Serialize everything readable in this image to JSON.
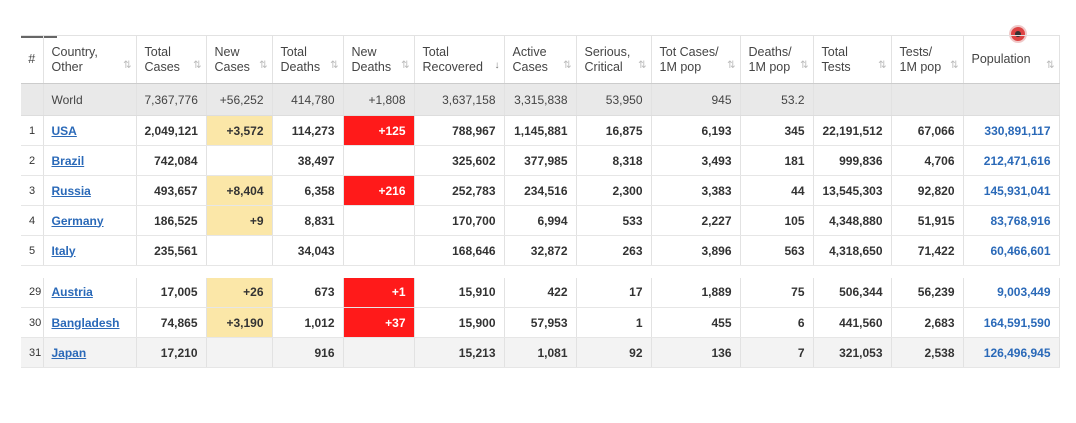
{
  "headers": [
    {
      "key": "idx",
      "line1": "#",
      "line2": ""
    },
    {
      "key": "country",
      "line1": "Country,",
      "line2": "Other"
    },
    {
      "key": "total_cases",
      "line1": "Total",
      "line2": "Cases"
    },
    {
      "key": "new_cases",
      "line1": "New",
      "line2": "Cases"
    },
    {
      "key": "total_deaths",
      "line1": "Total",
      "line2": "Deaths"
    },
    {
      "key": "new_deaths",
      "line1": "New",
      "line2": "Deaths"
    },
    {
      "key": "total_recovered",
      "line1": "Total",
      "line2": "Recovered"
    },
    {
      "key": "active_cases",
      "line1": "Active",
      "line2": "Cases"
    },
    {
      "key": "serious",
      "line1": "Serious,",
      "line2": "Critical"
    },
    {
      "key": "tot_cases_1m",
      "line1": "Tot Cases/",
      "line2": "1M pop"
    },
    {
      "key": "deaths_1m",
      "line1": "Deaths/",
      "line2": "1M pop"
    },
    {
      "key": "total_tests",
      "line1": "Total",
      "line2": "Tests"
    },
    {
      "key": "tests_1m",
      "line1": "Tests/",
      "line2": "1M pop"
    },
    {
      "key": "population",
      "line1": "Population",
      "line2": ""
    }
  ],
  "sort_icon": "⇅",
  "active_sort_icon": "↓",
  "world": {
    "country": "World",
    "total_cases": "7,367,776",
    "new_cases": "+56,252",
    "total_deaths": "414,780",
    "new_deaths": "+1,808",
    "total_recovered": "3,637,158",
    "active_cases": "3,315,838",
    "serious": "53,950",
    "tot_cases_1m": "945",
    "deaths_1m": "53.2",
    "total_tests": "",
    "tests_1m": "",
    "population": ""
  },
  "rows": [
    {
      "idx": "1",
      "country": "USA",
      "total_cases": "2,049,121",
      "new_cases": "+3,572",
      "total_deaths": "114,273",
      "new_deaths": "+125",
      "total_recovered": "788,967",
      "active_cases": "1,145,881",
      "serious": "16,875",
      "tot_cases_1m": "6,193",
      "deaths_1m": "345",
      "total_tests": "22,191,512",
      "tests_1m": "67,066",
      "population": "330,891,117"
    },
    {
      "idx": "2",
      "country": "Brazil",
      "total_cases": "742,084",
      "new_cases": "",
      "total_deaths": "38,497",
      "new_deaths": "",
      "total_recovered": "325,602",
      "active_cases": "377,985",
      "serious": "8,318",
      "tot_cases_1m": "3,493",
      "deaths_1m": "181",
      "total_tests": "999,836",
      "tests_1m": "4,706",
      "population": "212,471,616"
    },
    {
      "idx": "3",
      "country": "Russia",
      "total_cases": "493,657",
      "new_cases": "+8,404",
      "total_deaths": "6,358",
      "new_deaths": "+216",
      "total_recovered": "252,783",
      "active_cases": "234,516",
      "serious": "2,300",
      "tot_cases_1m": "3,383",
      "deaths_1m": "44",
      "total_tests": "13,545,303",
      "tests_1m": "92,820",
      "population": "145,931,041"
    },
    {
      "idx": "4",
      "country": "Germany",
      "total_cases": "186,525",
      "new_cases": "+9",
      "total_deaths": "8,831",
      "new_deaths": "",
      "total_recovered": "170,700",
      "active_cases": "6,994",
      "serious": "533",
      "tot_cases_1m": "2,227",
      "deaths_1m": "105",
      "total_tests": "4,348,880",
      "tests_1m": "51,915",
      "population": "83,768,916"
    },
    {
      "idx": "5",
      "country": "Italy",
      "total_cases": "235,561",
      "new_cases": "",
      "total_deaths": "34,043",
      "new_deaths": "",
      "total_recovered": "168,646",
      "active_cases": "32,872",
      "serious": "263",
      "tot_cases_1m": "3,896",
      "deaths_1m": "563",
      "total_tests": "4,318,650",
      "tests_1m": "71,422",
      "population": "60,466,601"
    }
  ],
  "rows2": [
    {
      "idx": "29",
      "country": "Austria",
      "total_cases": "17,005",
      "new_cases": "+26",
      "total_deaths": "673",
      "new_deaths": "+1",
      "total_recovered": "15,910",
      "active_cases": "422",
      "serious": "17",
      "tot_cases_1m": "1,889",
      "deaths_1m": "75",
      "total_tests": "506,344",
      "tests_1m": "56,239",
      "population": "9,003,449"
    },
    {
      "idx": "30",
      "country": "Bangladesh",
      "total_cases": "74,865",
      "new_cases": "+3,190",
      "total_deaths": "1,012",
      "new_deaths": "+37",
      "total_recovered": "15,900",
      "active_cases": "57,953",
      "serious": "1",
      "tot_cases_1m": "455",
      "deaths_1m": "6",
      "total_tests": "441,560",
      "tests_1m": "2,683",
      "population": "164,591,590"
    },
    {
      "idx": "31",
      "country": "Japan",
      "total_cases": "17,210",
      "new_cases": "",
      "total_deaths": "916",
      "new_deaths": "",
      "total_recovered": "15,213",
      "active_cases": "1,081",
      "serious": "92",
      "tot_cases_1m": "136",
      "deaths_1m": "7",
      "total_tests": "321,053",
      "tests_1m": "2,538",
      "population": "126,496,945"
    }
  ],
  "colors": {
    "new_cases_bg": "#fbe7a8",
    "new_deaths_bg": "#ff1a1a",
    "link": "#2a69b8",
    "world_bg": "#e9e9e9"
  }
}
